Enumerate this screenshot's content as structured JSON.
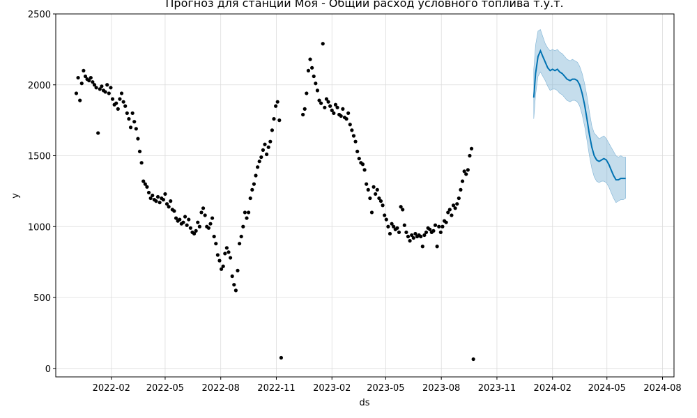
{
  "chart_data": {
    "type": "scatter",
    "title": "Прогноз для станции Моя - Общий расход условного топлива т.у.т.",
    "xlabel": "ds",
    "ylabel": "y",
    "xlim": [
      "2021-11-01",
      "2024-08-20"
    ],
    "ylim": [
      -60,
      2500
    ],
    "y_ticks": [
      0,
      500,
      1000,
      1500,
      2000,
      2500
    ],
    "x_ticks": [
      {
        "date": "2022-02-01",
        "label": "2022-02"
      },
      {
        "date": "2022-05-01",
        "label": "2022-05"
      },
      {
        "date": "2022-08-01",
        "label": "2022-08"
      },
      {
        "date": "2022-11-01",
        "label": "2022-11"
      },
      {
        "date": "2023-02-01",
        "label": "2023-02"
      },
      {
        "date": "2023-05-01",
        "label": "2023-05"
      },
      {
        "date": "2023-08-01",
        "label": "2023-08"
      },
      {
        "date": "2023-11-01",
        "label": "2023-11"
      },
      {
        "date": "2024-02-01",
        "label": "2024-02"
      },
      {
        "date": "2024-05-01",
        "label": "2024-05"
      },
      {
        "date": "2024-08-01",
        "label": "2024-08"
      }
    ],
    "grid": true,
    "colors": {
      "actual": "#000000",
      "forecast": "#0072B2",
      "interval": "#7fb3d5"
    },
    "series": [
      {
        "points": [
          [
            "2021-12-05",
            1940
          ],
          [
            "2021-12-08",
            2050
          ],
          [
            "2021-12-11",
            1890
          ],
          [
            "2021-12-14",
            2010
          ],
          [
            "2021-12-17",
            2100
          ],
          [
            "2021-12-20",
            2060
          ],
          [
            "2021-12-23",
            2040
          ],
          [
            "2021-12-26",
            2030
          ],
          [
            "2021-12-29",
            2050
          ],
          [
            "2022-01-01",
            2020
          ],
          [
            "2022-01-04",
            2000
          ],
          [
            "2022-01-07",
            1980
          ],
          [
            "2022-01-10",
            1660
          ],
          [
            "2022-01-13",
            1970
          ],
          [
            "2022-01-16",
            1990
          ],
          [
            "2022-01-19",
            1960
          ],
          [
            "2022-01-22",
            1950
          ],
          [
            "2022-01-25",
            2000
          ],
          [
            "2022-01-28",
            1940
          ],
          [
            "2022-01-31",
            1980
          ],
          [
            "2022-02-03",
            1900
          ],
          [
            "2022-02-06",
            1860
          ],
          [
            "2022-02-09",
            1870
          ],
          [
            "2022-02-12",
            1830
          ],
          [
            "2022-02-15",
            1900
          ],
          [
            "2022-02-18",
            1940
          ],
          [
            "2022-02-21",
            1880
          ],
          [
            "2022-02-24",
            1850
          ],
          [
            "2022-02-27",
            1800
          ],
          [
            "2022-03-02",
            1760
          ],
          [
            "2022-03-05",
            1700
          ],
          [
            "2022-03-08",
            1800
          ],
          [
            "2022-03-11",
            1740
          ],
          [
            "2022-03-14",
            1690
          ],
          [
            "2022-03-17",
            1620
          ],
          [
            "2022-03-20",
            1530
          ],
          [
            "2022-03-23",
            1450
          ],
          [
            "2022-03-26",
            1320
          ],
          [
            "2022-03-29",
            1300
          ],
          [
            "2022-04-01",
            1280
          ],
          [
            "2022-04-04",
            1240
          ],
          [
            "2022-04-07",
            1200
          ],
          [
            "2022-04-10",
            1220
          ],
          [
            "2022-04-13",
            1190
          ],
          [
            "2022-04-16",
            1180
          ],
          [
            "2022-04-19",
            1210
          ],
          [
            "2022-04-22",
            1170
          ],
          [
            "2022-04-25",
            1200
          ],
          [
            "2022-04-28",
            1190
          ],
          [
            "2022-05-01",
            1230
          ],
          [
            "2022-05-04",
            1160
          ],
          [
            "2022-05-07",
            1140
          ],
          [
            "2022-05-10",
            1180
          ],
          [
            "2022-05-13",
            1120
          ],
          [
            "2022-05-16",
            1110
          ],
          [
            "2022-05-19",
            1060
          ],
          [
            "2022-05-22",
            1040
          ],
          [
            "2022-05-25",
            1050
          ],
          [
            "2022-05-28",
            1020
          ],
          [
            "2022-05-31",
            1030
          ],
          [
            "2022-06-03",
            1070
          ],
          [
            "2022-06-06",
            1010
          ],
          [
            "2022-06-09",
            1050
          ],
          [
            "2022-06-12",
            990
          ],
          [
            "2022-06-15",
            960
          ],
          [
            "2022-06-18",
            950
          ],
          [
            "2022-06-21",
            970
          ],
          [
            "2022-06-24",
            1030
          ],
          [
            "2022-06-27",
            1000
          ],
          [
            "2022-06-30",
            1100
          ],
          [
            "2022-07-03",
            1130
          ],
          [
            "2022-07-06",
            1080
          ],
          [
            "2022-07-09",
            1000
          ],
          [
            "2022-07-12",
            990
          ],
          [
            "2022-07-15",
            1020
          ],
          [
            "2022-07-18",
            1060
          ],
          [
            "2022-07-21",
            930
          ],
          [
            "2022-07-24",
            880
          ],
          [
            "2022-07-27",
            800
          ],
          [
            "2022-07-30",
            760
          ],
          [
            "2022-08-02",
            700
          ],
          [
            "2022-08-05",
            720
          ],
          [
            "2022-08-08",
            810
          ],
          [
            "2022-08-11",
            850
          ],
          [
            "2022-08-14",
            820
          ],
          [
            "2022-08-17",
            780
          ],
          [
            "2022-08-20",
            650
          ],
          [
            "2022-08-23",
            590
          ],
          [
            "2022-08-26",
            550
          ],
          [
            "2022-08-29",
            690
          ],
          [
            "2022-09-01",
            880
          ],
          [
            "2022-09-04",
            930
          ],
          [
            "2022-09-07",
            1000
          ],
          [
            "2022-09-10",
            1100
          ],
          [
            "2022-09-13",
            1060
          ],
          [
            "2022-09-16",
            1100
          ],
          [
            "2022-09-19",
            1200
          ],
          [
            "2022-09-22",
            1260
          ],
          [
            "2022-09-25",
            1300
          ],
          [
            "2022-09-28",
            1360
          ],
          [
            "2022-10-01",
            1420
          ],
          [
            "2022-10-04",
            1460
          ],
          [
            "2022-10-07",
            1490
          ],
          [
            "2022-10-10",
            1540
          ],
          [
            "2022-10-13",
            1580
          ],
          [
            "2022-10-16",
            1510
          ],
          [
            "2022-10-19",
            1560
          ],
          [
            "2022-10-22",
            1600
          ],
          [
            "2022-10-25",
            1680
          ],
          [
            "2022-10-28",
            1760
          ],
          [
            "2022-10-31",
            1850
          ],
          [
            "2022-11-03",
            1880
          ],
          [
            "2022-11-06",
            1750
          ],
          [
            "2022-11-09",
            75
          ],
          [
            "2022-12-15",
            1790
          ],
          [
            "2022-12-18",
            1830
          ],
          [
            "2022-12-21",
            1940
          ],
          [
            "2022-12-24",
            2100
          ],
          [
            "2022-12-27",
            2180
          ],
          [
            "2022-12-30",
            2120
          ],
          [
            "2023-01-02",
            2060
          ],
          [
            "2023-01-05",
            2010
          ],
          [
            "2023-01-08",
            1960
          ],
          [
            "2023-01-11",
            1890
          ],
          [
            "2023-01-14",
            1870
          ],
          [
            "2023-01-17",
            2290
          ],
          [
            "2023-01-20",
            1840
          ],
          [
            "2023-01-23",
            1900
          ],
          [
            "2023-01-26",
            1880
          ],
          [
            "2023-01-29",
            1850
          ],
          [
            "2023-02-01",
            1820
          ],
          [
            "2023-02-04",
            1800
          ],
          [
            "2023-02-07",
            1860
          ],
          [
            "2023-02-10",
            1840
          ],
          [
            "2023-02-13",
            1790
          ],
          [
            "2023-02-16",
            1780
          ],
          [
            "2023-02-19",
            1830
          ],
          [
            "2023-02-22",
            1770
          ],
          [
            "2023-02-25",
            1760
          ],
          [
            "2023-02-28",
            1800
          ],
          [
            "2023-03-03",
            1720
          ],
          [
            "2023-03-06",
            1680
          ],
          [
            "2023-03-09",
            1640
          ],
          [
            "2023-03-12",
            1600
          ],
          [
            "2023-03-15",
            1530
          ],
          [
            "2023-03-18",
            1480
          ],
          [
            "2023-03-21",
            1450
          ],
          [
            "2023-03-24",
            1440
          ],
          [
            "2023-03-27",
            1400
          ],
          [
            "2023-03-30",
            1300
          ],
          [
            "2023-04-02",
            1260
          ],
          [
            "2023-04-05",
            1200
          ],
          [
            "2023-04-08",
            1100
          ],
          [
            "2023-04-11",
            1280
          ],
          [
            "2023-04-14",
            1230
          ],
          [
            "2023-04-17",
            1260
          ],
          [
            "2023-04-20",
            1200
          ],
          [
            "2023-04-23",
            1180
          ],
          [
            "2023-04-26",
            1150
          ],
          [
            "2023-04-29",
            1080
          ],
          [
            "2023-05-02",
            1050
          ],
          [
            "2023-05-05",
            1000
          ],
          [
            "2023-05-08",
            950
          ],
          [
            "2023-05-11",
            1020
          ],
          [
            "2023-05-14",
            1000
          ],
          [
            "2023-05-17",
            980
          ],
          [
            "2023-05-20",
            990
          ],
          [
            "2023-05-23",
            960
          ],
          [
            "2023-05-26",
            1140
          ],
          [
            "2023-05-29",
            1120
          ],
          [
            "2023-06-01",
            1010
          ],
          [
            "2023-06-04",
            960
          ],
          [
            "2023-06-07",
            930
          ],
          [
            "2023-06-10",
            900
          ],
          [
            "2023-06-13",
            940
          ],
          [
            "2023-06-16",
            920
          ],
          [
            "2023-06-19",
            950
          ],
          [
            "2023-06-22",
            930
          ],
          [
            "2023-06-25",
            940
          ],
          [
            "2023-06-28",
            930
          ],
          [
            "2023-07-01",
            860
          ],
          [
            "2023-07-04",
            940
          ],
          [
            "2023-07-07",
            960
          ],
          [
            "2023-07-10",
            990
          ],
          [
            "2023-07-13",
            980
          ],
          [
            "2023-07-16",
            960
          ],
          [
            "2023-07-19",
            970
          ],
          [
            "2023-07-22",
            1010
          ],
          [
            "2023-07-25",
            860
          ],
          [
            "2023-07-28",
            1000
          ],
          [
            "2023-07-31",
            960
          ],
          [
            "2023-08-03",
            1000
          ],
          [
            "2023-08-06",
            1040
          ],
          [
            "2023-08-09",
            1030
          ],
          [
            "2023-08-12",
            1100
          ],
          [
            "2023-08-15",
            1120
          ],
          [
            "2023-08-18",
            1080
          ],
          [
            "2023-08-21",
            1150
          ],
          [
            "2023-08-24",
            1130
          ],
          [
            "2023-08-27",
            1160
          ],
          [
            "2023-08-30",
            1200
          ],
          [
            "2023-09-02",
            1260
          ],
          [
            "2023-09-05",
            1320
          ],
          [
            "2023-09-08",
            1390
          ],
          [
            "2023-09-11",
            1370
          ],
          [
            "2023-09-14",
            1400
          ],
          [
            "2023-09-17",
            1500
          ],
          [
            "2023-09-20",
            1550
          ],
          [
            "2023-09-23",
            65
          ]
        ]
      },
      {
        "points": [
          [
            "2024-01-01",
            1910
          ],
          [
            "2024-01-04",
            2080
          ],
          [
            "2024-01-08",
            2200
          ],
          [
            "2024-01-12",
            2240
          ],
          [
            "2024-01-16",
            2200
          ],
          [
            "2024-01-20",
            2160
          ],
          [
            "2024-01-24",
            2120
          ],
          [
            "2024-01-28",
            2100
          ],
          [
            "2024-02-01",
            2110
          ],
          [
            "2024-02-05",
            2100
          ],
          [
            "2024-02-09",
            2110
          ],
          [
            "2024-02-13",
            2090
          ],
          [
            "2024-02-17",
            2080
          ],
          [
            "2024-02-21",
            2060
          ],
          [
            "2024-02-25",
            2040
          ],
          [
            "2024-03-01",
            2030
          ],
          [
            "2024-03-05",
            2040
          ],
          [
            "2024-03-09",
            2040
          ],
          [
            "2024-03-13",
            2030
          ],
          [
            "2024-03-17",
            2000
          ],
          [
            "2024-03-21",
            1940
          ],
          [
            "2024-03-25",
            1860
          ],
          [
            "2024-03-29",
            1760
          ],
          [
            "2024-04-02",
            1650
          ],
          [
            "2024-04-06",
            1560
          ],
          [
            "2024-04-10",
            1500
          ],
          [
            "2024-04-14",
            1470
          ],
          [
            "2024-04-18",
            1460
          ],
          [
            "2024-04-22",
            1470
          ],
          [
            "2024-04-26",
            1480
          ],
          [
            "2024-04-30",
            1470
          ],
          [
            "2024-05-04",
            1440
          ],
          [
            "2024-05-08",
            1400
          ],
          [
            "2024-05-12",
            1360
          ],
          [
            "2024-05-16",
            1330
          ],
          [
            "2024-05-20",
            1330
          ],
          [
            "2024-05-24",
            1340
          ],
          [
            "2024-05-28",
            1340
          ],
          [
            "2024-06-01",
            1340
          ]
        ],
        "upper": [
          2110,
          2280,
          2380,
          2390,
          2340,
          2290,
          2260,
          2240,
          2250,
          2240,
          2250,
          2230,
          2220,
          2200,
          2180,
          2170,
          2180,
          2170,
          2160,
          2130,
          2080,
          2010,
          1920,
          1810,
          1710,
          1660,
          1640,
          1620,
          1630,
          1640,
          1620,
          1590,
          1560,
          1530,
          1500,
          1490,
          1500,
          1490,
          1490
        ],
        "lower": [
          1760,
          1930,
          2060,
          2090,
          2060,
          2030,
          1990,
          1960,
          1970,
          1970,
          1960,
          1940,
          1930,
          1910,
          1890,
          1880,
          1890,
          1890,
          1880,
          1850,
          1790,
          1710,
          1610,
          1500,
          1410,
          1350,
          1320,
          1310,
          1320,
          1320,
          1310,
          1280,
          1240,
          1200,
          1170,
          1180,
          1190,
          1190,
          1200
        ]
      }
    ]
  }
}
